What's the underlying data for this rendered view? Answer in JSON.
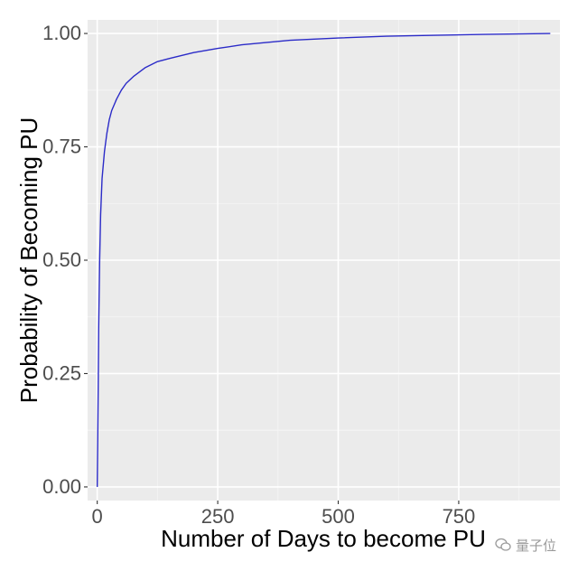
{
  "chart_data": {
    "type": "line",
    "xlabel": "Number of Days to become PU",
    "ylabel": "Probability of Becoming PU",
    "xlim": [
      -20,
      960
    ],
    "ylim": [
      -0.03,
      1.03
    ],
    "x_ticks": [
      0,
      250,
      500,
      750
    ],
    "x_tick_labels": [
      "0",
      "250",
      "500",
      "750"
    ],
    "y_ticks": [
      0,
      0.25,
      0.5,
      0.75,
      1.0
    ],
    "y_tick_labels": [
      "0.00",
      "0.25",
      "0.50",
      "0.75",
      "1.00"
    ],
    "grid": true,
    "series": [
      {
        "color": "#2b2bc8",
        "x": [
          0,
          1,
          2,
          3,
          5,
          7,
          10,
          15,
          20,
          25,
          30,
          40,
          50,
          60,
          75,
          100,
          125,
          150,
          200,
          250,
          300,
          400,
          500,
          600,
          700,
          800,
          940
        ],
        "y": [
          0.0,
          0.1,
          0.22,
          0.35,
          0.5,
          0.6,
          0.68,
          0.74,
          0.78,
          0.81,
          0.83,
          0.855,
          0.875,
          0.89,
          0.905,
          0.925,
          0.938,
          0.945,
          0.958,
          0.967,
          0.975,
          0.985,
          0.99,
          0.994,
          0.996,
          0.998,
          1.0
        ]
      }
    ]
  },
  "watermark": {
    "text": "量子位",
    "icon": "wechat-icon"
  }
}
